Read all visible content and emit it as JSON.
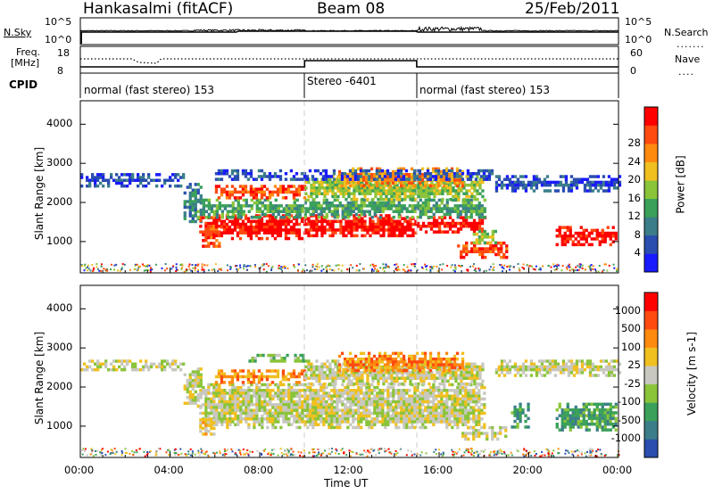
{
  "header": {
    "site": "Hankasalmi (fitACF)",
    "beam": "Beam 08",
    "date": "25/Feb/2011"
  },
  "top_panels": {
    "nsky_label": "N.Sky",
    "nsky_ticks": [
      "10^5",
      "10^0"
    ],
    "nsearch_label": "N.Search",
    "nsearch_ticks": [
      "10^5",
      "10^0"
    ],
    "freq_label_1": "Freq.",
    "freq_label_2": "[MHz]",
    "freq_ticks": [
      "18",
      "8"
    ],
    "nave_label": "Nave",
    "nave_ticks": [
      "60",
      "0"
    ],
    "cpid_label": "CPID",
    "cpid_segments": [
      {
        "label": "normal (fast stereo) 153",
        "start": 0,
        "end": 10
      },
      {
        "label": "Stereo -6401",
        "start": 10,
        "end": 15
      },
      {
        "label": "normal (fast stereo) 153",
        "start": 15,
        "end": 24
      }
    ]
  },
  "x_axis": {
    "label": "Time UT",
    "ticks": [
      "00:00",
      "04:00",
      "08:00",
      "12:00",
      "16:00",
      "20:00",
      "00:00"
    ]
  },
  "chart_data": [
    {
      "type": "heatmap",
      "ylabel": "Slant Range [km]",
      "yticks": [
        "1000",
        "2000",
        "3000",
        "4000"
      ],
      "ylim": [
        200,
        4600
      ],
      "xlim": [
        0,
        24
      ],
      "colorbar_label": "Power [dB]",
      "colorbar_ticks": [
        "4",
        "8",
        "12",
        "16",
        "20",
        "24",
        "28"
      ],
      "colors": [
        "#1a1aff",
        "#2a4eb0",
        "#3b7e8a",
        "#3aa05a",
        "#8ac43a",
        "#f0c020",
        "#ff8a10",
        "#ff4a10",
        "#ff0000"
      ],
      "regions": [
        {
          "t0": 0.0,
          "t1": 4.6,
          "r0": 2400,
          "r1": 2750,
          "level": 1
        },
        {
          "t0": 4.6,
          "t1": 5.4,
          "r0": 1500,
          "r1": 2500,
          "level": 2
        },
        {
          "t0": 5.3,
          "t1": 6.2,
          "r0": 850,
          "r1": 1650,
          "level": 7
        },
        {
          "t0": 6.0,
          "t1": 10.0,
          "r0": 1100,
          "r1": 1700,
          "level": 8
        },
        {
          "t0": 10.0,
          "t1": 15.0,
          "r0": 1150,
          "r1": 1700,
          "level": 8
        },
        {
          "t0": 15.0,
          "t1": 18.0,
          "r0": 1250,
          "r1": 1650,
          "level": 8
        },
        {
          "t0": 5.2,
          "t1": 18.0,
          "r0": 1650,
          "r1": 2100,
          "level": 3
        },
        {
          "t0": 6.0,
          "t1": 10.0,
          "r0": 2100,
          "r1": 2450,
          "level": 7
        },
        {
          "t0": 10.0,
          "t1": 18.0,
          "r0": 2100,
          "r1": 2700,
          "level": 4
        },
        {
          "t0": 11.5,
          "t1": 17.0,
          "r0": 2400,
          "r1": 2900,
          "level": 6
        },
        {
          "t0": 6.0,
          "t1": 18.5,
          "r0": 2600,
          "r1": 2850,
          "level": 1
        },
        {
          "t0": 16.8,
          "t1": 19.0,
          "r0": 600,
          "r1": 1000,
          "level": 7
        },
        {
          "t0": 18.5,
          "t1": 24.0,
          "r0": 2300,
          "r1": 2700,
          "level": 1
        },
        {
          "t0": 21.2,
          "t1": 23.9,
          "r0": 900,
          "r1": 1400,
          "level": 8
        },
        {
          "t0": 17.5,
          "t1": 18.5,
          "r0": 1000,
          "r1": 1300,
          "level": 4
        }
      ]
    },
    {
      "type": "heatmap",
      "ylabel": "Slant Range [km]",
      "yticks": [
        "1000",
        "2000",
        "3000",
        "4000"
      ],
      "ylim": [
        200,
        4600
      ],
      "xlim": [
        0,
        24
      ],
      "colorbar_label": "Velocity [m s-1]",
      "colorbar_ticks": [
        "1000",
        "500",
        "100",
        "25",
        "-25",
        "-100",
        "-500",
        "-1000"
      ],
      "colors": [
        "#2a4eb0",
        "#3b7e8a",
        "#3aa05a",
        "#8ac43a",
        "#c8c8c0",
        "#f0c020",
        "#ff8a10",
        "#ff4a10",
        "#ff0000"
      ],
      "regions": [
        {
          "t0": 0.0,
          "t1": 4.6,
          "r0": 2450,
          "r1": 2700,
          "level": 4
        },
        {
          "t0": 4.6,
          "t1": 5.4,
          "r0": 1500,
          "r1": 2500,
          "level": 4
        },
        {
          "t0": 5.3,
          "t1": 18.0,
          "r0": 1000,
          "r1": 2100,
          "level": 4
        },
        {
          "t0": 6.0,
          "t1": 10.0,
          "r0": 2100,
          "r1": 2450,
          "level": 6
        },
        {
          "t0": 10.0,
          "t1": 18.0,
          "r0": 2100,
          "r1": 2700,
          "level": 4
        },
        {
          "t0": 11.5,
          "t1": 17.0,
          "r0": 2400,
          "r1": 2900,
          "level": 6
        },
        {
          "t0": 7.5,
          "t1": 10.0,
          "r0": 2650,
          "r1": 2850,
          "level": 3
        },
        {
          "t0": 17.0,
          "t1": 19.0,
          "r0": 650,
          "r1": 1000,
          "level": 4
        },
        {
          "t0": 18.5,
          "t1": 24.0,
          "r0": 2300,
          "r1": 2700,
          "level": 4
        },
        {
          "t0": 19.2,
          "t1": 20.0,
          "r0": 1000,
          "r1": 1600,
          "level": 2
        },
        {
          "t0": 21.2,
          "t1": 23.9,
          "r0": 900,
          "r1": 1600,
          "level": 2
        },
        {
          "t0": 5.3,
          "t1": 5.9,
          "r0": 800,
          "r1": 1200,
          "level": 5
        }
      ]
    }
  ]
}
